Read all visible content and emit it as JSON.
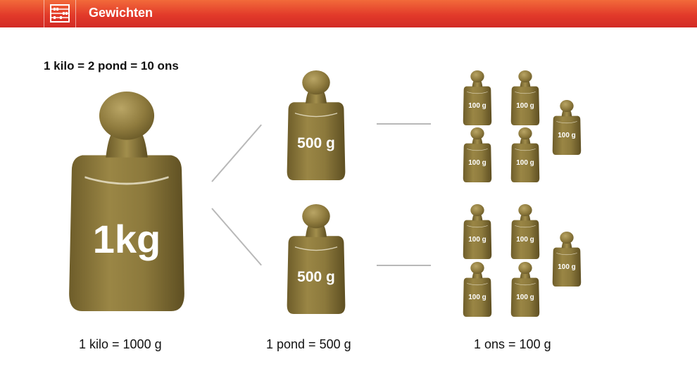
{
  "header": {
    "title": "Gewichten",
    "icon": "abacus-icon"
  },
  "equation": "1 kilo = 2 pond = 10 ons",
  "weights": {
    "kilo_label": "1kg",
    "pond_label": "500 g",
    "ons_label": "100 g"
  },
  "captions": {
    "kilo": "1 kilo = 1000 g",
    "pond": "1 pond = 500 g",
    "ons": "1 ons = 100 g"
  },
  "colors": {
    "header_top": "#f26a3a",
    "header_bottom": "#d22a24",
    "weight_body": "#8f7b3e"
  }
}
